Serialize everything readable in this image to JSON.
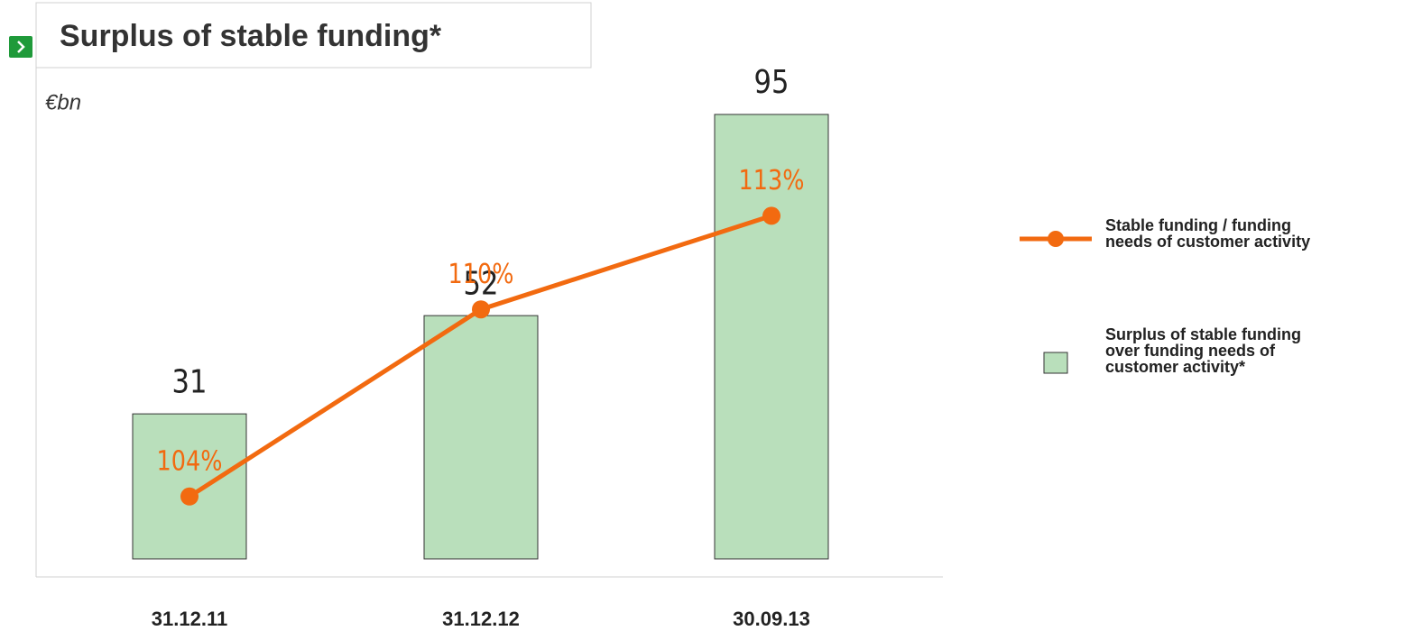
{
  "chart_data": {
    "type": "bar",
    "title": "Surplus of stable funding*",
    "y_label": "€bn",
    "categories": [
      "31.12.11",
      "31.12.12",
      "30.09.13"
    ],
    "ylim": [
      0,
      100
    ],
    "y2lim": [
      102,
      117
    ],
    "series": [
      {
        "name": "Stable funding / funding needs of customer activity",
        "type": "line",
        "color": "#f26a10",
        "axis": "y2",
        "values": [
          104,
          110,
          113
        ],
        "value_labels": [
          "104%",
          "110%",
          "113%"
        ]
      },
      {
        "name": "Surplus of stable funding over funding needs of customer activity*",
        "type": "bar",
        "color": "#b9dfbb",
        "values": [
          31,
          52,
          95
        ]
      }
    ]
  }
}
